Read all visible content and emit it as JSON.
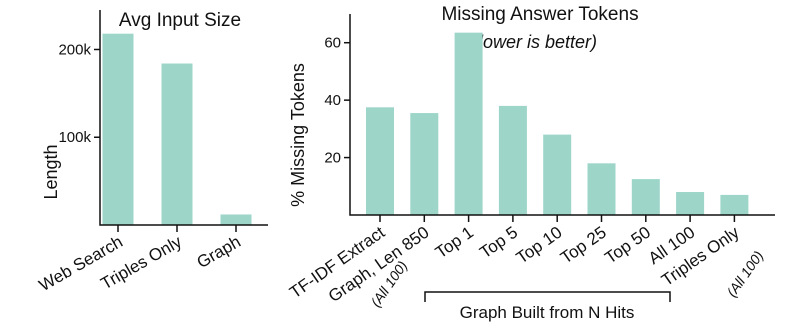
{
  "chart_data": [
    {
      "type": "bar",
      "title": "Avg Input Size",
      "ylabel": "Length",
      "xlabel": "",
      "categories": [
        "Web Search",
        "Triples Only",
        "Graph"
      ],
      "values": [
        218000,
        184000,
        12000
      ],
      "ylim": [
        0,
        245000
      ],
      "yticks": [
        100000,
        200000
      ],
      "ytick_labels": [
        "100k",
        "200k"
      ],
      "grid": false,
      "bar_color": "#9dd5c9"
    },
    {
      "type": "bar",
      "title": "Missing Answer Tokens",
      "subtitle": "(lower is better)",
      "ylabel": "% Missing Tokens",
      "xlabel": "",
      "categories": [
        "TF-IDF Extract",
        "Graph, Len 850",
        "Top 1",
        "Top 5",
        "Top 10",
        "Top 25",
        "Top 50",
        "All 100",
        "Triples Only"
      ],
      "annotations": {
        "graph_len": "(All 100)",
        "triples": "(All 100)"
      },
      "group_label": "Graph Built from N Hits",
      "values": [
        37.5,
        35.5,
        63.5,
        38,
        28,
        18,
        12.5,
        8,
        7
      ],
      "ylim": [
        0,
        70
      ],
      "yticks": [
        20,
        40,
        60
      ],
      "grid": false,
      "bar_color": "#9dd5c9"
    }
  ]
}
